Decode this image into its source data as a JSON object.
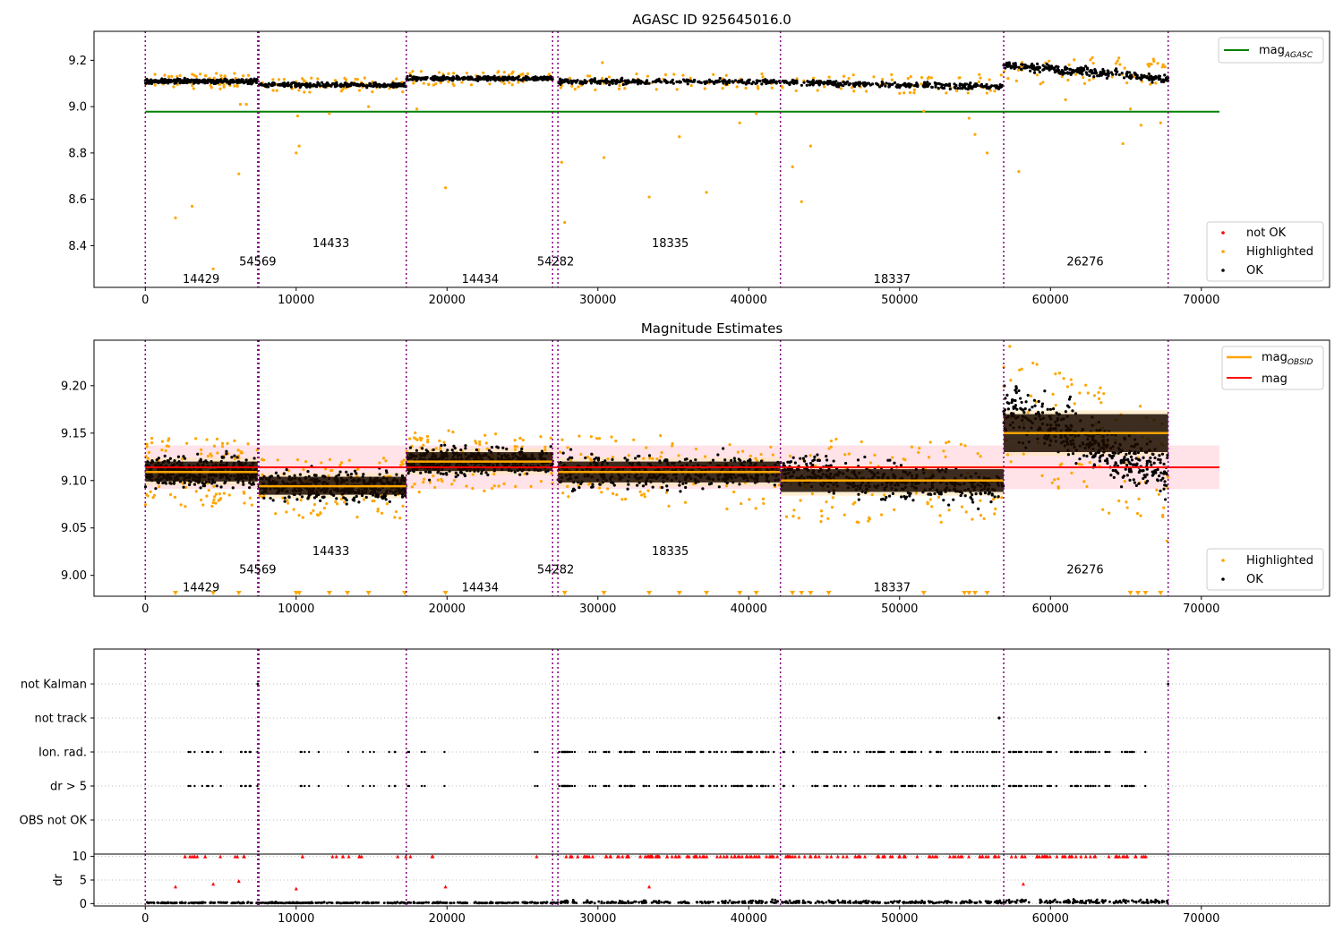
{
  "figure": {
    "title_top": "AGASC ID 925645016.0",
    "title_mid": "Magnitude Estimates"
  },
  "colors": {
    "ok": "#000000",
    "not_ok": "#ff0000",
    "highlighted": "#ffa500",
    "obsid_line": "#800080",
    "mag_agasc": "#008000",
    "mag": "#ff0000",
    "mag_obsid": "#ffa500",
    "mag_band": "#ffc0cb"
  },
  "chart_data": [
    {
      "type": "scatter",
      "title": "AGASC ID 925645016.0",
      "xlim": [
        -3400,
        78500
      ],
      "ylim": [
        8.22,
        9.325
      ],
      "x_ticks": [
        0,
        10000,
        20000,
        30000,
        40000,
        50000,
        60000,
        70000
      ],
      "y_ticks": [
        8.4,
        8.6,
        8.8,
        9.0,
        9.2
      ],
      "y_tick_labels": [
        "8.4",
        "8.6",
        "8.8",
        "9.0",
        "9.2"
      ],
      "obsid_boundaries": [
        0,
        7450,
        7530,
        17300,
        27000,
        27350,
        42100,
        56900,
        67800
      ],
      "obsid_labels": [
        {
          "text": "14429",
          "x": 3700,
          "y": 8.255
        },
        {
          "text": "54569",
          "x": 7450,
          "y": 8.33
        },
        {
          "text": "14433",
          "x": 12300,
          "y": 8.41
        },
        {
          "text": "14434",
          "x": 22200,
          "y": 8.255
        },
        {
          "text": "54282",
          "x": 27200,
          "y": 8.33
        },
        {
          "text": "18335",
          "x": 34800,
          "y": 8.41
        },
        {
          "text": "18337",
          "x": 49500,
          "y": 8.255
        },
        {
          "text": "26276",
          "x": 62300,
          "y": 8.33
        }
      ],
      "series": [
        {
          "name": "mag_{AGASC}",
          "kind": "hline",
          "y": 8.978,
          "x_range": [
            0,
            71200
          ]
        },
        {
          "name": "not OK",
          "kind": "scatter"
        },
        {
          "name": "Highlighted",
          "kind": "scatter"
        },
        {
          "name": "OK",
          "kind": "scatter"
        }
      ],
      "segments_ok": [
        {
          "x0": 0,
          "x1": 7450,
          "mean": 9.11,
          "spread": 0.028
        },
        {
          "x0": 7530,
          "x1": 17300,
          "mean": 9.093,
          "spread": 0.026
        },
        {
          "x0": 17300,
          "x1": 27000,
          "mean": 9.122,
          "spread": 0.026
        },
        {
          "x0": 27350,
          "x1": 42100,
          "mean": 9.108,
          "spread": 0.03
        },
        {
          "x0": 42100,
          "x1": 56900,
          "mean": 9.098,
          "spread": 0.034
        },
        {
          "x0": 56900,
          "x1": 67800,
          "mean": 9.155,
          "spread": 0.05
        }
      ],
      "outliers_highlighted": [
        [
          2000,
          8.52
        ],
        [
          3100,
          8.57
        ],
        [
          4500,
          8.3
        ],
        [
          6200,
          8.71
        ],
        [
          6300,
          9.01
        ],
        [
          6700,
          9.01
        ],
        [
          10000,
          8.8
        ],
        [
          10200,
          8.83
        ],
        [
          10100,
          8.96
        ],
        [
          12200,
          8.97
        ],
        [
          14800,
          9.0
        ],
        [
          18000,
          8.99
        ],
        [
          19900,
          8.65
        ],
        [
          27600,
          8.76
        ],
        [
          27800,
          8.5
        ],
        [
          30400,
          8.78
        ],
        [
          30300,
          9.19
        ],
        [
          33400,
          8.61
        ],
        [
          35400,
          8.87
        ],
        [
          37200,
          8.63
        ],
        [
          39400,
          8.93
        ],
        [
          40500,
          8.97
        ],
        [
          42900,
          8.74
        ],
        [
          43500,
          8.59
        ],
        [
          44100,
          8.83
        ],
        [
          51600,
          8.98
        ],
        [
          54600,
          8.95
        ],
        [
          55000,
          8.88
        ],
        [
          55800,
          8.8
        ],
        [
          57900,
          8.72
        ],
        [
          61000,
          9.03
        ],
        [
          64800,
          8.84
        ],
        [
          66000,
          8.92
        ],
        [
          67300,
          8.93
        ],
        [
          65300,
          8.99
        ]
      ]
    },
    {
      "type": "scatter",
      "title": "Magnitude Estimates",
      "xlim": [
        -3400,
        78500
      ],
      "ylim": [
        8.978,
        9.248
      ],
      "x_ticks": [
        0,
        10000,
        20000,
        30000,
        40000,
        50000,
        60000,
        70000
      ],
      "y_ticks": [
        9.0,
        9.05,
        9.1,
        9.15,
        9.2
      ],
      "y_tick_labels": [
        "9.00",
        "9.05",
        "9.10",
        "9.15",
        "9.20"
      ],
      "obsid_labels": [
        {
          "text": "14429",
          "x": 3700,
          "y": 8.987
        },
        {
          "text": "54569",
          "x": 7450,
          "y": 9.006
        },
        {
          "text": "14433",
          "x": 12300,
          "y": 9.025
        },
        {
          "text": "14434",
          "x": 22200,
          "y": 8.987
        },
        {
          "text": "54282",
          "x": 27200,
          "y": 9.006
        },
        {
          "text": "18335",
          "x": 34800,
          "y": 9.025
        },
        {
          "text": "18337",
          "x": 49500,
          "y": 8.987
        },
        {
          "text": "26276",
          "x": 62300,
          "y": 9.006
        }
      ],
      "series": [
        {
          "name": "mag_{OBSID}",
          "kind": "step",
          "values": [
            9.109,
            9.094,
            9.12,
            9.109,
            9.1,
            9.15
          ]
        },
        {
          "name": "mag",
          "kind": "hline",
          "y": 9.114,
          "band": [
            9.091,
            9.137
          ],
          "x_range": [
            0,
            71200
          ]
        },
        {
          "name": "Highlighted",
          "kind": "scatter"
        },
        {
          "name": "OK",
          "kind": "scatter"
        }
      ],
      "obsid_bands": [
        [
          9.095,
          9.124
        ],
        [
          9.081,
          9.108
        ],
        [
          9.106,
          9.134
        ],
        [
          9.094,
          9.124
        ],
        [
          9.084,
          9.116
        ],
        [
          9.126,
          9.174
        ]
      ],
      "clipped_markers_x": [
        2000,
        4500,
        6200,
        10000,
        10200,
        12200,
        13400,
        14800,
        17200,
        19900,
        27800,
        30400,
        33400,
        35400,
        37200,
        39400,
        40500,
        42900,
        43500,
        44100,
        45300,
        51600,
        54300,
        54600,
        55000,
        55800,
        65300,
        65800,
        66300,
        67300
      ]
    },
    {
      "type": "scatter",
      "categories": [
        "not Kalman",
        "not track",
        "Ion. rad.",
        "dr > 5",
        "OBS not OK"
      ],
      "flag_regions": [
        [
          1800,
          7450,
          0.35
        ],
        [
          10000,
          21500,
          0.18
        ],
        [
          25800,
          26000,
          1.0
        ],
        [
          27400,
          42100,
          0.85
        ],
        [
          42200,
          56800,
          0.62
        ],
        [
          57200,
          66400,
          0.72
        ]
      ],
      "not_track_x": [
        56600
      ],
      "not_kalman_x": [
        7450,
        67800
      ]
    },
    {
      "type": "scatter",
      "ylabel": "dr",
      "ylim": [
        -0.5,
        10.5
      ],
      "y_ticks": [
        0,
        5,
        10
      ],
      "y_tick_labels": [
        "0",
        "5",
        "10"
      ],
      "series": [
        {
          "name": "OK",
          "kind": "scatter",
          "typical": 0.4
        },
        {
          "name": "not OK",
          "kind": "scatter",
          "clipped_at": 10
        }
      ]
    }
  ],
  "legend_top": {
    "line_label": "mag",
    "line_sub": "AGASC",
    "items": [
      "not OK",
      "Highlighted",
      "OK"
    ]
  },
  "legend_mid": {
    "line1_label": "mag",
    "line1_sub": "OBSID",
    "line2_label": "mag",
    "items": [
      "Highlighted",
      "OK"
    ]
  }
}
